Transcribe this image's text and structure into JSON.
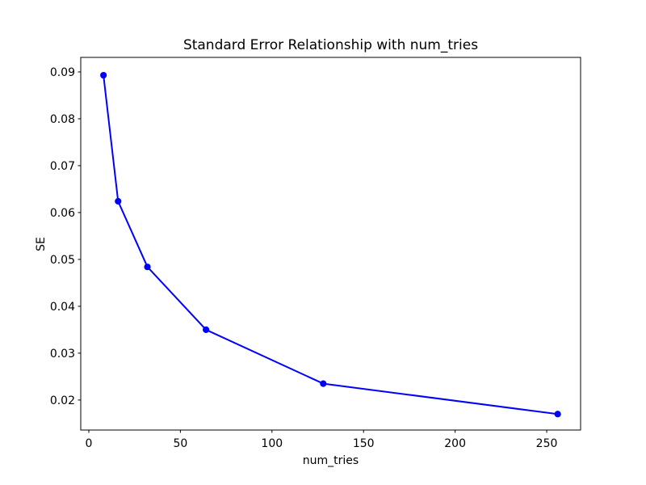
{
  "figure": {
    "background": "#ffffff"
  },
  "chart_data": {
    "type": "line",
    "title": "Standard Error Relationship with num_tries",
    "xlabel": "num_tries",
    "ylabel": "SE",
    "x": [
      8,
      16,
      32,
      64,
      128,
      256
    ],
    "y": [
      0.0893,
      0.0624,
      0.0484,
      0.035,
      0.0235,
      0.017
    ],
    "xticks": {
      "values": [
        0,
        50,
        100,
        150,
        200,
        250
      ],
      "labels": [
        "0",
        "50",
        "100",
        "150",
        "200",
        "250"
      ]
    },
    "yticks": {
      "values": [
        0.02,
        0.03,
        0.04,
        0.05,
        0.06,
        0.07,
        0.08,
        0.09
      ],
      "labels": [
        "0.02",
        "0.03",
        "0.04",
        "0.05",
        "0.06",
        "0.07",
        "0.08",
        "0.09"
      ]
    },
    "xlim": [
      -4.4,
      268.5
    ],
    "ylim": [
      0.0136,
      0.0931
    ],
    "grid": false,
    "legend": "none",
    "line_color": "#0000ff",
    "marker": "o",
    "marker_color": "#0000ff",
    "axes_color": "#000000",
    "text_color": "#000000"
  }
}
